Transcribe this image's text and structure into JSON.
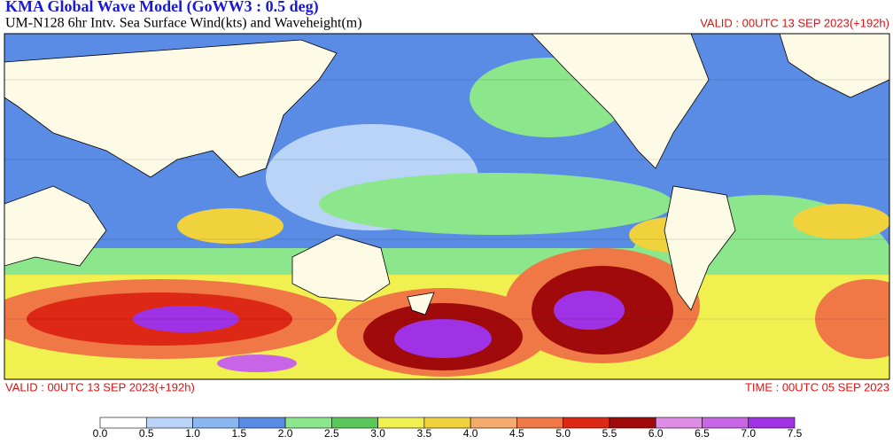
{
  "header": {
    "title": "KMA  Global Wave Model (GoWW3 : 0.5 deg)",
    "subtitle": "UM-N128  6hr Intv. Sea Surface Wind(kts) and Waveheight(m)",
    "valid": "VALID : 00UTC 13 SEP 2023(+192h)"
  },
  "footer": {
    "valid": "VALID : 00UTC 13 SEP 2023(+192h)",
    "time": "TIME : 00UTC 05 SEP 2023"
  },
  "colorbar": {
    "labels": [
      "0.0",
      "0.5",
      "1.0",
      "1.5",
      "2.0",
      "2.5",
      "3.0",
      "3.5",
      "4.0",
      "4.5",
      "5.0",
      "5.5",
      "6.0",
      "6.5",
      "7.0",
      "7.5"
    ],
    "colors": [
      "#ffffff",
      "#b9d4f7",
      "#8cb6f0",
      "#5a8ce6",
      "#8ce68c",
      "#5ac85a",
      "#f0f050",
      "#f0d23c",
      "#f5aa6e",
      "#f07846",
      "#dc2814",
      "#a00a0a",
      "#e08ce6",
      "#c864e6",
      "#a032e6"
    ]
  }
}
